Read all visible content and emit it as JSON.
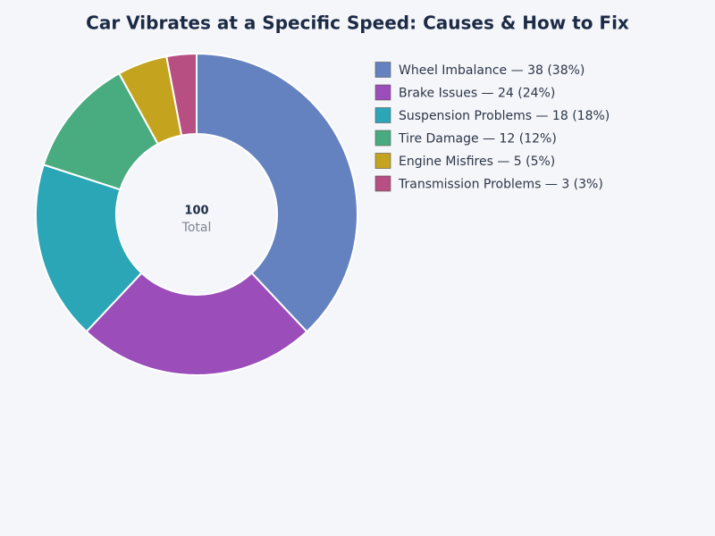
{
  "chart_data": {
    "type": "donut",
    "title": "Car Vibrates at a Specific Speed: Causes & How to Fix",
    "categories": [
      "Wheel Imbalance — 38 (38%)",
      "Brake Issues — 24 (24%)",
      "Suspension Problems — 18 (18%)",
      "Tire Damage — 12 (12%)",
      "Engine Misfires — 5 (5%)",
      "Transmission Problems — 3 (3%)"
    ],
    "values": [
      38,
      24,
      18,
      12,
      5,
      3
    ],
    "colors": [
      "#6482c0",
      "#9b4dba",
      "#2aa6b6",
      "#49ab80",
      "#c4a41f",
      "#b84f82"
    ],
    "total": 100,
    "total_label": "Total",
    "legend_position": "right"
  }
}
